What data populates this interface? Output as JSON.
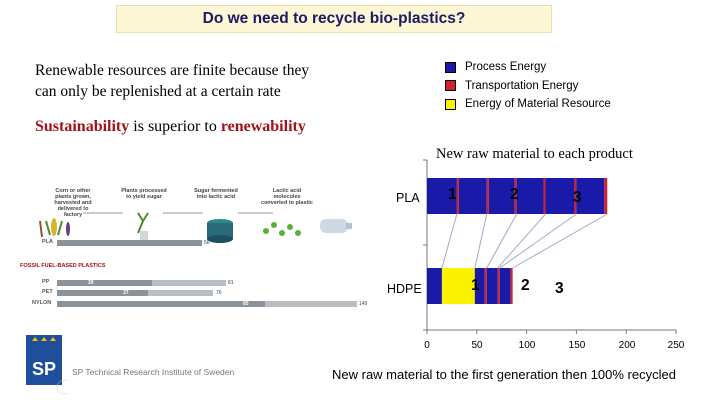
{
  "title": "Do we need to recycle bio-plastics?",
  "intro_line1": "Renewable resources are finite because they",
  "intro_line2": "can only be replenished at a certain rate",
  "sustain": {
    "part1": "Sustainability",
    "part2": " is superior to ",
    "part3": "renewability"
  },
  "legend": [
    {
      "label": "Process Energy",
      "color": "#1a1aa8"
    },
    {
      "label": "Transportation Energy",
      "color": "#d2202c"
    },
    {
      "label": "Energy of Material Resource",
      "color": "#fbf200"
    }
  ],
  "new_raw_label": "New raw material to each product",
  "chart_data": {
    "type": "bar",
    "orientation": "horizontal",
    "stacked": true,
    "categories": [
      "PLA",
      "HDPE"
    ],
    "x_ticks": [
      "0",
      "50",
      "100",
      "150",
      "200",
      "250"
    ],
    "xlim": [
      0,
      250
    ],
    "caption": "New raw material to the first generation then 100% recycled",
    "bars": [
      {
        "category": "PLA",
        "segment_labels": [
          "1",
          "2",
          "3"
        ],
        "segments": [
          {
            "type": "process",
            "from": 0,
            "to": 30
          },
          {
            "type": "transport",
            "from": 30,
            "to": 32
          },
          {
            "type": "process",
            "from": 32,
            "to": 60
          },
          {
            "type": "transport",
            "from": 60,
            "to": 62
          },
          {
            "type": "process",
            "from": 62,
            "to": 88
          },
          {
            "type": "transport",
            "from": 88,
            "to": 90
          },
          {
            "type": "process",
            "from": 90,
            "to": 117
          },
          {
            "type": "transport",
            "from": 117,
            "to": 119
          },
          {
            "type": "process",
            "from": 119,
            "to": 148
          },
          {
            "type": "transport",
            "from": 148,
            "to": 150
          },
          {
            "type": "process",
            "from": 150,
            "to": 178
          },
          {
            "type": "transport",
            "from": 178,
            "to": 181
          }
        ]
      },
      {
        "category": "HDPE",
        "segment_labels": [
          "1",
          "2",
          "3"
        ],
        "segments": [
          {
            "type": "process",
            "from": 0,
            "to": 15
          },
          {
            "type": "material",
            "from": 15,
            "to": 48
          },
          {
            "type": "process",
            "from": 48,
            "to": 58
          },
          {
            "type": "transport",
            "from": 58,
            "to": 60
          },
          {
            "type": "process",
            "from": 60,
            "to": 71
          },
          {
            "type": "transport",
            "from": 71,
            "to": 73
          },
          {
            "type": "process",
            "from": 73,
            "to": 84
          },
          {
            "type": "transport",
            "from": 84,
            "to": 86
          }
        ]
      }
    ],
    "colors": {
      "process": "#1a1aa8",
      "transport": "#d2202c",
      "material": "#fbf200"
    }
  },
  "infographic": {
    "steps": [
      "Corn or other plants grown, harvested and delivered to factory",
      "Plants processed to yield sugar",
      "Sugar fermented into lactic acid",
      "Lactic acid molecules converted to plastic"
    ],
    "pla_label": "PLA",
    "pla_value": "56",
    "fossil_heading": "FOSSIL FUEL-BASED PLASTICS",
    "fossil_rows": [
      {
        "label": "PP",
        "inner": "39",
        "end": "81"
      },
      {
        "label": "PET",
        "inner": "37",
        "end": "76"
      },
      {
        "label": "NYLON",
        "inner": "85",
        "end": "149"
      }
    ]
  },
  "sp_text": "SP Technical Research Institute of Sweden",
  "logo_text": "SP"
}
